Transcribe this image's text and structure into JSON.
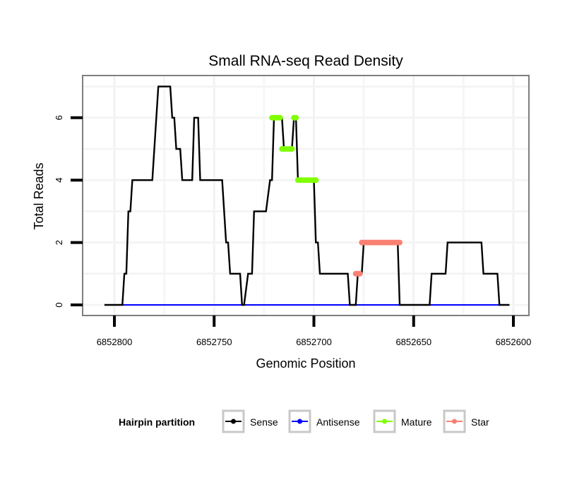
{
  "chart_data": {
    "type": "line",
    "title": "Small RNA-seq Read Density",
    "xlabel": "Genomic Position",
    "ylabel": "Total Reads",
    "xlim": [
      6852805,
      6852595
    ],
    "x_reversed": true,
    "ylim": [
      -0.35,
      7.35
    ],
    "xticks": [
      6852800,
      6852750,
      6852700,
      6852650,
      6852600
    ],
    "xtick_labels": [
      "6852800",
      "6852750",
      "6852700",
      "6852650",
      "6852600"
    ],
    "yticks": [
      0,
      2,
      4,
      6
    ],
    "ytick_labels": [
      "0",
      "2",
      "4",
      "6"
    ],
    "grid": true,
    "legend": {
      "title": "Hairpin partition",
      "placement": "bottom",
      "entries": [
        "Sense",
        "Antisense",
        "Mature",
        "Star"
      ]
    },
    "colors": {
      "Sense": "#000000",
      "Antisense": "#0000ff",
      "Mature": "#7fff00",
      "Star": "#fa8072"
    },
    "series": [
      {
        "name": "Sense",
        "style": "line",
        "x": [
          6852805,
          6852796,
          6852795,
          6852794,
          6852793,
          6852792,
          6852791,
          6852781,
          6852778,
          6852772,
          6852771,
          6852770,
          6852769,
          6852767,
          6852766,
          6852761,
          6852760,
          6852758,
          6852757,
          6852746,
          6852744,
          6852743,
          6852742,
          6852737,
          6852736,
          6852735,
          6852733,
          6852731,
          6852730,
          6852724,
          6852722,
          6852721,
          6852720,
          6852716,
          6852715,
          6852711,
          6852710,
          6852709,
          6852708,
          6852700,
          6852699,
          6852698,
          6852697,
          6852683,
          6852682,
          6852679,
          6852678,
          6852676,
          6852675,
          6852658,
          6852657,
          6852642,
          6852641,
          6852634,
          6852633,
          6852616,
          6852615,
          6852608,
          6852607,
          6852602
        ],
        "y": [
          0,
          0,
          1,
          1,
          3,
          3,
          4,
          4,
          7,
          7,
          6,
          6,
          5,
          5,
          4,
          4,
          6,
          6,
          4,
          4,
          2,
          2,
          1,
          1,
          0,
          0,
          1,
          1,
          3,
          3,
          4,
          4,
          6,
          6,
          5,
          5,
          6,
          6,
          4,
          4,
          2,
          2,
          1,
          1,
          0,
          0,
          1,
          1,
          2,
          2,
          0,
          0,
          1,
          1,
          2,
          2,
          1,
          1,
          0,
          0
        ]
      },
      {
        "name": "Antisense",
        "style": "line",
        "x": [
          6852796,
          6852602
        ],
        "y": [
          0,
          0
        ]
      },
      {
        "name": "Mature",
        "style": "points",
        "x": [
          6852721,
          6852720,
          6852719,
          6852718,
          6852717,
          6852716,
          6852715,
          6852714,
          6852713,
          6852712,
          6852711,
          6852710,
          6852709,
          6852708,
          6852707,
          6852706,
          6852705,
          6852704,
          6852703,
          6852702,
          6852701,
          6852700,
          6852699
        ],
        "y": [
          6,
          6,
          6,
          6,
          6,
          5,
          5,
          5,
          5,
          5,
          5,
          6,
          6,
          4,
          4,
          4,
          4,
          4,
          4,
          4,
          4,
          4,
          4
        ]
      },
      {
        "name": "Star",
        "style": "points",
        "x": [
          6852679,
          6852678,
          6852677,
          6852676,
          6852675,
          6852674,
          6852673,
          6852672,
          6852671,
          6852670,
          6852669,
          6852668,
          6852667,
          6852666,
          6852665,
          6852664,
          6852663,
          6852662,
          6852661,
          6852660,
          6852659,
          6852658,
          6852657
        ],
        "y": [
          1,
          1,
          1,
          2,
          2,
          2,
          2,
          2,
          2,
          2,
          2,
          2,
          2,
          2,
          2,
          2,
          2,
          2,
          2,
          2,
          2,
          2,
          2
        ]
      }
    ]
  }
}
